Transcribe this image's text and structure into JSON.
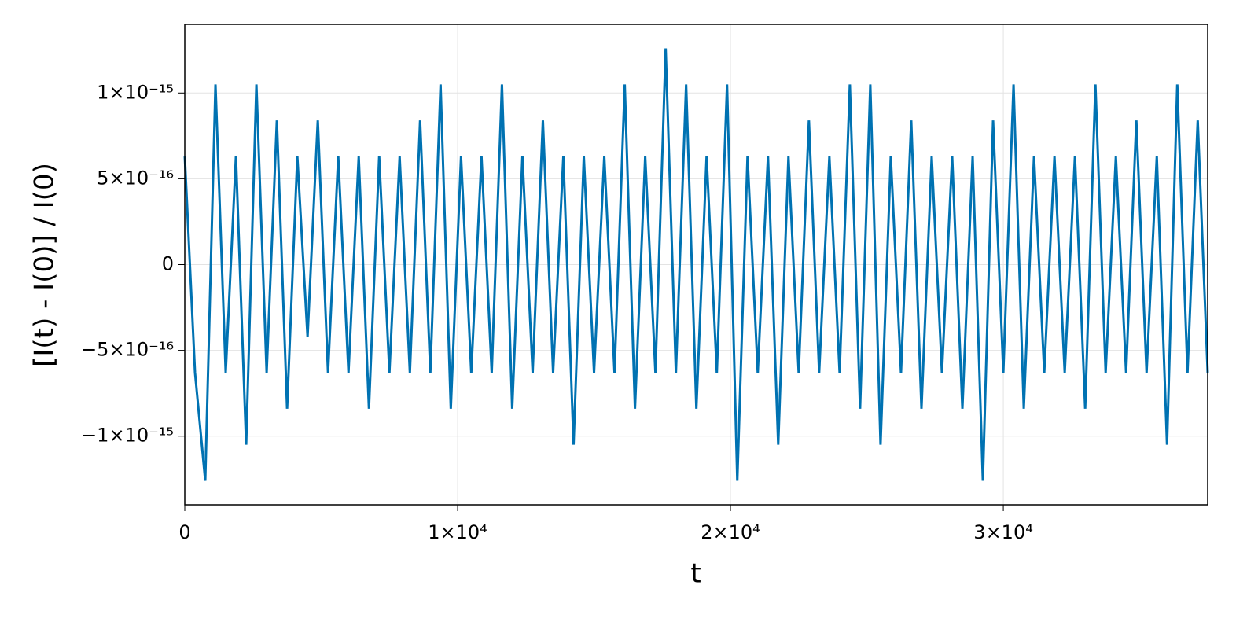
{
  "chart_data": {
    "type": "line",
    "x_label": "t",
    "y_label": "[I(t) - I(0)] / I(0)",
    "color": "#0072b2",
    "grid": true,
    "xlim": [
      0,
      37490
    ],
    "ylim": [
      -1.4e-15,
      1.4e-15
    ],
    "xticks": [
      0,
      {
        "value": 10000,
        "label": "1×10⁴"
      },
      {
        "value": 20000,
        "label": "2×10⁴"
      },
      {
        "value": 30000,
        "label": "3×10⁴"
      }
    ],
    "yticks": [
      {
        "value": -1e-15,
        "label": "−1×10⁻¹⁵"
      },
      {
        "value": -5e-16,
        "label": "−5×10⁻¹⁶"
      },
      0,
      {
        "value": 5e-16,
        "label": "5×10⁻¹⁶"
      },
      {
        "value": 1e-15,
        "label": "1×10⁻¹⁵"
      }
    ],
    "x": [
      0,
      375,
      750,
      1125,
      1500,
      1875,
      2250,
      2625,
      3000,
      3375,
      3750,
      4125,
      4500,
      4875,
      5250,
      5625,
      6000,
      6375,
      6750,
      7125,
      7500,
      7875,
      8250,
      8625,
      9000,
      9375,
      9750,
      10125,
      10500,
      10875,
      11250,
      11625,
      12000,
      12375,
      12750,
      13125,
      13500,
      13875,
      14250,
      14625,
      15000,
      15375,
      15750,
      16125,
      16500,
      16875,
      17250,
      17625,
      18000,
      18375,
      18750,
      19125,
      19500,
      19875,
      20250,
      20625,
      21000,
      21375,
      21750,
      22125,
      22500,
      22875,
      23250,
      23625,
      24000,
      24375,
      24750,
      25125,
      25500,
      25875,
      26250,
      26625,
      27000,
      27375,
      27750,
      28125,
      28500,
      28875,
      29250,
      29625,
      30000,
      30375,
      30750,
      31125,
      31500,
      31875,
      32250,
      32625,
      33000,
      33375,
      33750,
      34125,
      34500,
      34875,
      35250,
      35625,
      36000,
      36375,
      36750,
      37125,
      37490
    ],
    "values": [
      6.3e-16,
      -6.3e-16,
      -1.26e-15,
      1.05e-15,
      -6.3e-16,
      6.3e-16,
      -1.05e-15,
      1.05e-15,
      -6.3e-16,
      8.4e-16,
      -8.4e-16,
      6.3e-16,
      -4.2e-16,
      8.4e-16,
      -6.3e-16,
      6.3e-16,
      -6.3e-16,
      6.3e-16,
      -8.4e-16,
      6.3e-16,
      -6.3e-16,
      6.3e-16,
      -6.3e-16,
      8.4e-16,
      -6.3e-16,
      1.05e-15,
      -8.4e-16,
      6.3e-16,
      -6.3e-16,
      6.3e-16,
      -6.3e-16,
      1.05e-15,
      -8.4e-16,
      6.3e-16,
      -6.3e-16,
      8.4e-16,
      -6.3e-16,
      6.3e-16,
      -1.05e-15,
      6.3e-16,
      -6.3e-16,
      6.3e-16,
      -6.3e-16,
      1.05e-15,
      -8.4e-16,
      6.3e-16,
      -6.3e-16,
      1.26e-15,
      -6.3e-16,
      1.05e-15,
      -8.4e-16,
      6.3e-16,
      -6.3e-16,
      1.05e-15,
      -1.26e-15,
      6.3e-16,
      -6.3e-16,
      6.3e-16,
      -1.05e-15,
      6.3e-16,
      -6.3e-16,
      8.4e-16,
      -6.3e-16,
      6.3e-16,
      -6.3e-16,
      1.05e-15,
      -8.4e-16,
      1.05e-15,
      -1.05e-15,
      6.3e-16,
      -6.3e-16,
      8.4e-16,
      -8.4e-16,
      6.3e-16,
      -6.3e-16,
      6.3e-16,
      -8.4e-16,
      6.3e-16,
      -1.26e-15,
      8.4e-16,
      -6.3e-16,
      1.05e-15,
      -8.4e-16,
      6.3e-16,
      -6.3e-16,
      6.3e-16,
      -6.3e-16,
      6.3e-16,
      -8.4e-16,
      1.05e-15,
      -6.3e-16,
      6.3e-16,
      -6.3e-16,
      8.4e-16,
      -6.3e-16,
      6.3e-16,
      -1.05e-15,
      1.05e-15,
      -6.3e-16,
      8.4e-16,
      -6.3e-16
    ]
  }
}
